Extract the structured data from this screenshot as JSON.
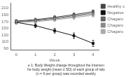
{
  "chart_data": {
    "type": "line",
    "x": [
      0,
      1,
      2,
      3,
      4
    ],
    "series": [
      {
        "name": "Healthy c",
        "color": "#444444",
        "values": [
          172,
          176,
          183,
          191,
          200
        ],
        "errors": [
          4,
          4,
          5,
          5,
          5
        ],
        "marker": "square",
        "line_style": "solid"
      },
      {
        "name": "Negative",
        "color": "#111111",
        "values": [
          168,
          158,
          143,
          128,
          105
        ],
        "errors": [
          5,
          6,
          7,
          8,
          9
        ],
        "marker": "square",
        "line_style": "solid"
      },
      {
        "name": "Chagaro",
        "color": "#666666",
        "values": [
          170,
          174,
          180,
          188,
          196
        ],
        "errors": [
          4,
          4,
          5,
          5,
          5
        ],
        "marker": "square",
        "line_style": "solid"
      },
      {
        "name": "Chagaro",
        "color": "#888888",
        "values": [
          169,
          172,
          178,
          185,
          193
        ],
        "errors": [
          4,
          4,
          4,
          5,
          5
        ],
        "marker": "square",
        "line_style": "solid"
      },
      {
        "name": "Chagaro",
        "color": "#aaaaaa",
        "values": [
          167,
          170,
          175,
          182,
          189
        ],
        "errors": [
          4,
          4,
          4,
          5,
          5
        ],
        "marker": "square",
        "line_style": "solid"
      }
    ],
    "xlabel": "Week",
    "xlim": [
      -0.3,
      4.3
    ],
    "xticks": [
      0,
      1,
      2,
      3,
      4
    ],
    "ylim": [
      85,
      225
    ],
    "yticks": [
      90,
      110,
      130,
      150,
      170,
      190,
      210
    ],
    "grid": false,
    "legend": "right",
    "annotations": [
      "e 1: Body Weight change throughout the Interven",
      "he body weight (mean ± SD) of each group of rats",
      "(n = 6 per group) was recorded weekly."
    ]
  }
}
